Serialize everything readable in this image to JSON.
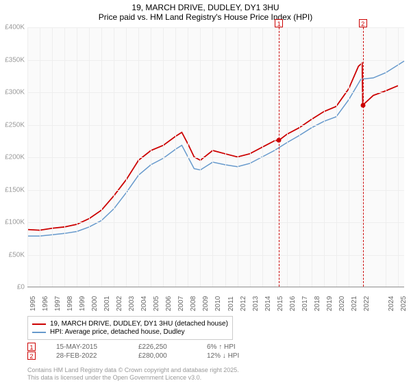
{
  "title": {
    "line1": "19, MARCH DRIVE, DUDLEY, DY1 3HU",
    "line2": "Price paid vs. HM Land Registry's House Price Index (HPI)"
  },
  "chart": {
    "type": "line",
    "background_color": "#fafafa",
    "grid_color": "#eeeeee",
    "ylim": [
      0,
      400000
    ],
    "ytick_step": 50000,
    "y_labels": [
      "£0",
      "£50K",
      "£100K",
      "£150K",
      "£200K",
      "£250K",
      "£300K",
      "£350K",
      "£400K"
    ],
    "x_years": [
      1995,
      1996,
      1997,
      1998,
      1999,
      2000,
      2001,
      2002,
      2003,
      2004,
      2005,
      2006,
      2007,
      2008,
      2009,
      2010,
      2011,
      2012,
      2013,
      2014,
      2015,
      2016,
      2017,
      2018,
      2019,
      2020,
      2021,
      2022,
      2024,
      2025
    ],
    "x_min": 1995,
    "x_max": 2025.5,
    "series": [
      {
        "name": "property",
        "label": "19, MARCH DRIVE, DUDLEY, DY1 3HU (detached house)",
        "color": "#cc0000",
        "line_width": 1.8,
        "data": [
          [
            1995,
            88000
          ],
          [
            1996,
            87000
          ],
          [
            1997,
            90000
          ],
          [
            1998,
            92000
          ],
          [
            1999,
            96000
          ],
          [
            2000,
            105000
          ],
          [
            2001,
            118000
          ],
          [
            2002,
            140000
          ],
          [
            2003,
            165000
          ],
          [
            2004,
            195000
          ],
          [
            2005,
            210000
          ],
          [
            2006,
            218000
          ],
          [
            2007,
            232000
          ],
          [
            2007.5,
            238000
          ],
          [
            2008,
            220000
          ],
          [
            2008.5,
            200000
          ],
          [
            2009,
            195000
          ],
          [
            2010,
            210000
          ],
          [
            2011,
            205000
          ],
          [
            2012,
            200000
          ],
          [
            2013,
            205000
          ],
          [
            2014,
            215000
          ],
          [
            2015,
            225000
          ],
          [
            2015.4,
            226250
          ],
          [
            2016,
            235000
          ],
          [
            2017,
            245000
          ],
          [
            2018,
            258000
          ],
          [
            2019,
            270000
          ],
          [
            2020,
            278000
          ],
          [
            2021,
            305000
          ],
          [
            2021.8,
            340000
          ],
          [
            2022.1,
            345000
          ],
          [
            2022.15,
            280000
          ],
          [
            2023,
            295000
          ],
          [
            2024,
            302000
          ],
          [
            2025,
            310000
          ]
        ]
      },
      {
        "name": "hpi",
        "label": "HPI: Average price, detached house, Dudley",
        "color": "#6699cc",
        "line_width": 1.5,
        "data": [
          [
            1995,
            78000
          ],
          [
            1996,
            78000
          ],
          [
            1997,
            80000
          ],
          [
            1998,
            82000
          ],
          [
            1999,
            85000
          ],
          [
            2000,
            92000
          ],
          [
            2001,
            102000
          ],
          [
            2002,
            120000
          ],
          [
            2003,
            145000
          ],
          [
            2004,
            172000
          ],
          [
            2005,
            188000
          ],
          [
            2006,
            198000
          ],
          [
            2007,
            212000
          ],
          [
            2007.5,
            218000
          ],
          [
            2008,
            200000
          ],
          [
            2008.5,
            182000
          ],
          [
            2009,
            180000
          ],
          [
            2010,
            192000
          ],
          [
            2011,
            188000
          ],
          [
            2012,
            185000
          ],
          [
            2013,
            190000
          ],
          [
            2014,
            200000
          ],
          [
            2015,
            210000
          ],
          [
            2016,
            222000
          ],
          [
            2017,
            233000
          ],
          [
            2018,
            245000
          ],
          [
            2019,
            255000
          ],
          [
            2020,
            262000
          ],
          [
            2021,
            288000
          ],
          [
            2022,
            320000
          ],
          [
            2023,
            322000
          ],
          [
            2024,
            330000
          ],
          [
            2025,
            342000
          ],
          [
            2025.5,
            348000
          ]
        ]
      }
    ],
    "markers": [
      {
        "num": "1",
        "year": 2015.37,
        "price": 226250
      },
      {
        "num": "2",
        "year": 2022.16,
        "price": 280000
      }
    ]
  },
  "legend": {
    "items": [
      {
        "color": "#cc0000",
        "label": "19, MARCH DRIVE, DUDLEY, DY1 3HU (detached house)"
      },
      {
        "color": "#6699cc",
        "label": "HPI: Average price, detached house, Dudley"
      }
    ]
  },
  "transactions": [
    {
      "num": "1",
      "date": "15-MAY-2015",
      "price": "£226,250",
      "delta": "6% ↑ HPI"
    },
    {
      "num": "2",
      "date": "28-FEB-2022",
      "price": "£280,000",
      "delta": "12% ↓ HPI"
    }
  ],
  "credits": {
    "line1": "Contains HM Land Registry data © Crown copyright and database right 2025.",
    "line2": "This data is licensed under the Open Government Licence v3.0."
  }
}
